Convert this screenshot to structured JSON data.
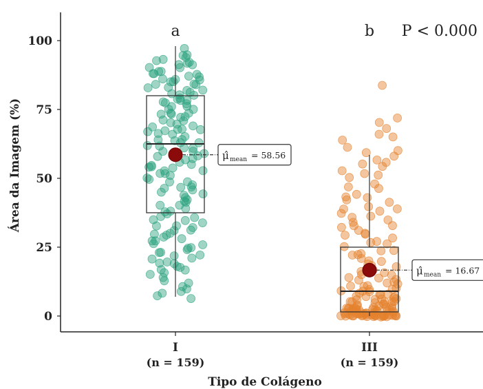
{
  "chart_data": {
    "type": "boxplot",
    "xlabel": "Tipo de Colágeno",
    "ylabel": "Área da Imagem (%)",
    "ylim": [
      -5,
      110
    ],
    "yticks": [
      0,
      25,
      50,
      75,
      100
    ],
    "categories": [
      "I",
      "III"
    ],
    "category_n": [
      "(n = 159)",
      "(n = 159)"
    ],
    "significance_letters": [
      "a",
      "b"
    ],
    "p_value_label": "P < 0.000",
    "mean_symbol": "μ̂",
    "mean_subscript": "mean",
    "groups": [
      {
        "name": "I",
        "color": "#2ca27f",
        "box": {
          "whisker_low": 7,
          "q1": 37.5,
          "median": 62.5,
          "q3": 80,
          "whisker_high": 98
        },
        "mean": 58.56,
        "mean_label": "= 58.56",
        "points": [
          97,
          95,
          94,
          93,
          92,
          92,
          91,
          90,
          89,
          88,
          88,
          87,
          86,
          86,
          85,
          84,
          84,
          83,
          82,
          81,
          81,
          80,
          79,
          78,
          78,
          77,
          76,
          75,
          74,
          73,
          73,
          72,
          71,
          70,
          69,
          68,
          68,
          67,
          66,
          65,
          64,
          64,
          63,
          62,
          61,
          60,
          60,
          59,
          58,
          57,
          56,
          55,
          54,
          54,
          53,
          52,
          51,
          50,
          49,
          48,
          47,
          46,
          45,
          44,
          43,
          42,
          41,
          40,
          39,
          38,
          37,
          36,
          35,
          34,
          33,
          32,
          31,
          30,
          29,
          28,
          27,
          26,
          25,
          24,
          23,
          22,
          21,
          20,
          19,
          18,
          17,
          16,
          14,
          12,
          10,
          8,
          6,
          88,
          85,
          82,
          79,
          76,
          72,
          68,
          64,
          58,
          54,
          49,
          44,
          38,
          33,
          29,
          25,
          21,
          17,
          13,
          9,
          91,
          87,
          83,
          78,
          74,
          70,
          66,
          62,
          57,
          52,
          47,
          42,
          36,
          31,
          27,
          23,
          19,
          15,
          11,
          7,
          89,
          86,
          80,
          75,
          71,
          67,
          63,
          55,
          50,
          46,
          40,
          35,
          30,
          26,
          22,
          18,
          95,
          93,
          90,
          84,
          77,
          69,
          61,
          53
        ]
      },
      {
        "name": "III",
        "color": "#e4812d",
        "box": {
          "whisker_low": 0,
          "q1": 1.5,
          "median": 9,
          "q3": 25,
          "whisker_high": 58.5
        },
        "mean": 16.67,
        "mean_label": "= 16.67",
        "points": [
          84,
          72,
          70,
          68,
          66,
          65,
          64,
          61,
          60,
          59,
          58,
          57,
          56,
          55,
          54,
          53,
          52,
          51,
          50,
          48,
          46,
          44,
          43,
          42,
          41,
          40,
          39,
          38,
          37,
          36,
          35,
          34,
          33,
          32,
          31,
          30,
          29,
          28,
          27,
          26,
          25,
          24,
          23,
          22,
          21,
          20,
          19,
          18,
          17,
          16,
          15,
          14,
          13,
          12,
          11,
          10,
          9,
          8,
          7,
          6,
          5,
          4,
          3,
          2,
          1,
          0,
          0,
          0,
          0,
          0,
          0,
          0,
          0,
          0,
          0,
          0,
          0,
          0,
          0,
          0,
          0,
          0,
          0,
          0,
          0,
          0,
          0,
          0,
          0,
          1,
          1,
          1,
          1,
          1,
          1,
          1,
          1,
          1,
          1,
          2,
          2,
          2,
          2,
          2,
          2,
          2,
          2,
          3,
          3,
          3,
          3,
          3,
          3,
          4,
          4,
          4,
          4,
          5,
          5,
          5,
          5,
          6,
          6,
          6,
          7,
          7,
          7,
          8,
          8,
          9,
          9,
          10,
          10,
          11,
          11,
          12,
          12,
          13,
          14,
          15,
          16,
          18,
          20,
          22,
          24,
          27,
          30,
          33,
          36,
          39,
          43,
          47,
          2,
          3,
          4,
          1,
          0,
          0,
          1,
          2,
          5,
          8
        ]
      }
    ]
  }
}
